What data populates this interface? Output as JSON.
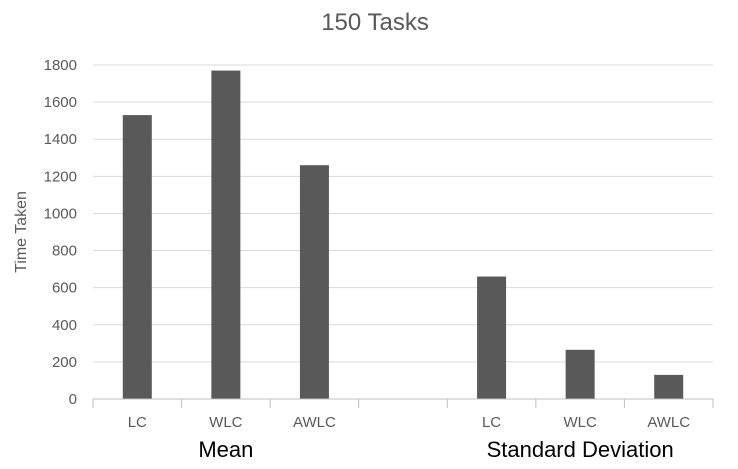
{
  "chart_data": {
    "type": "bar",
    "title": "150 Tasks",
    "ylabel": "Time Taken",
    "xlabel": "",
    "ylim": [
      0,
      1800
    ],
    "yticks": [
      0,
      200,
      400,
      600,
      800,
      1000,
      1200,
      1400,
      1600,
      1800
    ],
    "grid": true,
    "legend": "none",
    "colors": {
      "bar": "#595959",
      "grid": "#d9d9d9",
      "axis": "#bfbfbf",
      "text": "#595959",
      "group_label": "#000000"
    },
    "categories": [
      "LC",
      "WLC",
      "AWLC",
      "",
      "LC",
      "WLC",
      "AWLC"
    ],
    "values": [
      1530,
      1770,
      1260,
      null,
      660,
      265,
      130
    ],
    "groups": [
      {
        "label": "Mean",
        "categories": [
          "LC",
          "WLC",
          "AWLC"
        ]
      },
      {
        "label": "Standard Deviation",
        "categories": [
          "LC",
          "WLC",
          "AWLC"
        ]
      }
    ]
  }
}
